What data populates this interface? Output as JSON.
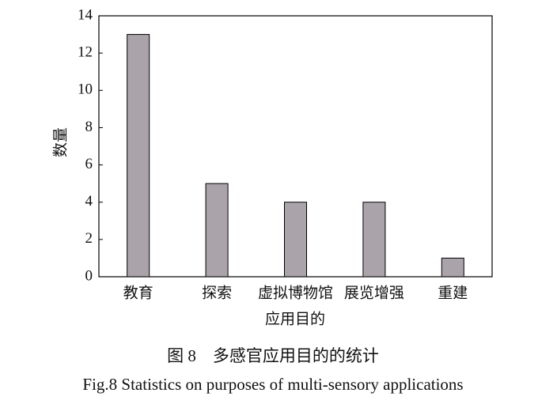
{
  "chart_data": {
    "type": "bar",
    "categories": [
      "教育",
      "探索",
      "虚拟博物馆",
      "展览增强",
      "重建"
    ],
    "values": [
      13,
      5,
      4,
      4,
      1
    ],
    "color": "#aaa4aa",
    "ylim": [
      0,
      14
    ],
    "yticks": [
      0,
      2,
      4,
      6,
      8,
      10,
      12,
      14
    ],
    "y_label": "数量",
    "x_label": "应用目的",
    "caption": "图 8　多感官应用目的的统计",
    "caption_en": "Fig.8 Statistics on purposes of multi-sensory applications"
  }
}
